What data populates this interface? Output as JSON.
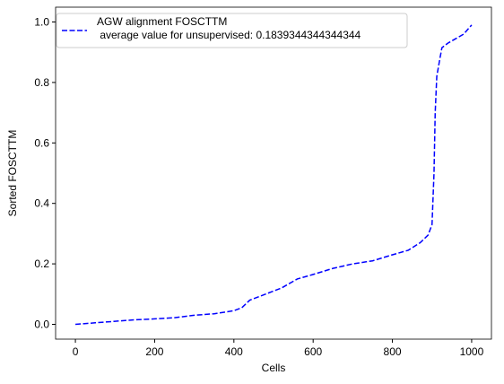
{
  "chart_data": {
    "type": "line",
    "xlabel": "Cells",
    "ylabel": "Sorted FOSCTTM",
    "x": [
      0,
      50,
      100,
      150,
      200,
      250,
      300,
      350,
      400,
      420,
      440,
      480,
      520,
      560,
      600,
      650,
      700,
      750,
      800,
      840,
      870,
      890,
      900,
      905,
      908,
      912,
      920,
      925,
      940,
      960,
      980,
      1000
    ],
    "series": [
      {
        "name": "AGW alignment FOSCTTM\n average value for unsupervised: 0.1839344344344344",
        "color": "#0000ff",
        "values": [
          0.0,
          0.005,
          0.01,
          0.015,
          0.018,
          0.022,
          0.03,
          0.035,
          0.045,
          0.055,
          0.08,
          0.1,
          0.12,
          0.15,
          0.165,
          0.185,
          0.2,
          0.21,
          0.23,
          0.245,
          0.27,
          0.295,
          0.33,
          0.5,
          0.7,
          0.82,
          0.88,
          0.915,
          0.93,
          0.945,
          0.96,
          0.99
        ]
      }
    ],
    "xlim": [
      -49.95,
      1049.95
    ],
    "ylim": [
      -0.049,
      1.049
    ],
    "xticks": [
      0,
      200,
      400,
      600,
      800,
      1000
    ],
    "yticks": [
      {
        "value": 0,
        "label": "0.0"
      },
      {
        "value": 0.2,
        "label": "0.2"
      },
      {
        "value": 0.4,
        "label": "0.4"
      },
      {
        "value": 0.6,
        "label": "0.6"
      },
      {
        "value": 0.8,
        "label": "0.8"
      },
      {
        "value": 1,
        "label": "1.0"
      }
    ],
    "linestyle": "dashed",
    "legend": "upper left",
    "grid": false
  }
}
